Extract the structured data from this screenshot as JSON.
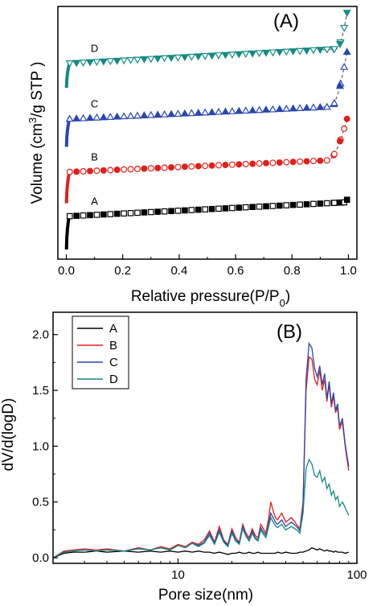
{
  "chart_data": [
    {
      "type": "scatter",
      "panel_label": "(A)",
      "xlabel": "Relative pressure(P/P",
      "xlabel_sub": "0",
      "xlabel_end": ")",
      "ylabel": "Volume (cm",
      "ylabel_sup": "3",
      "ylabel_end": "/g STP )",
      "xlim": [
        -0.03,
        1.03
      ],
      "x_ticks": [
        0.0,
        0.2,
        0.4,
        0.6,
        0.8,
        1.0
      ],
      "x_tick_labels": [
        "0.0",
        "0.2",
        "0.4",
        "0.6",
        "0.8",
        "1.0"
      ],
      "y_ticks_shown": false,
      "ylim": [
        0,
        100
      ],
      "series": [
        {
          "name": "A",
          "color": "#000000",
          "marker": "square",
          "base": 17,
          "knee": 5.0,
          "plateau": 17.0,
          "slope": 5.6,
          "tail_start": 0.99,
          "tail_top": 23.5
        },
        {
          "name": "B",
          "color": "#e0201b",
          "marker": "circle",
          "base": 34,
          "knee": 4.5,
          "plateau": 34.5,
          "slope": 5.0,
          "tail_start": 0.93,
          "tail_top": 55.5
        },
        {
          "name": "C",
          "color": "#2946b0",
          "marker": "triangle-up",
          "base": 55,
          "knee": 4.0,
          "plateau": 55.5,
          "slope": 5.2,
          "tail_start": 0.94,
          "tail_top": 82.0
        },
        {
          "name": "D",
          "color": "#138a83",
          "marker": "triangle-down",
          "base": 77,
          "knee": 3.5,
          "plateau": 77.5,
          "slope": 6.0,
          "tail_start": 0.96,
          "tail_top": 97.5
        }
      ]
    },
    {
      "type": "line",
      "panel_label": "(B)",
      "xlabel": "Pore size(nm)",
      "ylabel": "dV/d(logD)",
      "xscale": "log",
      "xlim": [
        2,
        100
      ],
      "ylim": [
        -0.05,
        2.2
      ],
      "x_ticks": [
        10,
        100
      ],
      "x_tick_labels": [
        "10",
        "100"
      ],
      "y_ticks": [
        0.0,
        0.5,
        1.0,
        1.5,
        2.0
      ],
      "y_tick_labels": [
        "0.0",
        "0.5",
        "1.0",
        "1.5",
        "2.0"
      ],
      "legend_position": "top-left",
      "x": [
        2.0,
        2.3,
        2.6,
        3.0,
        3.5,
        4.0,
        5.0,
        6.0,
        7.0,
        8.0,
        9.0,
        10.0,
        11.0,
        12.0,
        13.0,
        14.0,
        15.0,
        16.0,
        17.0,
        18.0,
        19.0,
        20.0,
        21.0,
        22.0,
        23.0,
        24.0,
        25.0,
        26.0,
        27.0,
        28.0,
        29.0,
        30.0,
        31.0,
        32.0,
        33.0,
        34.0,
        35.0,
        36.0,
        38.0,
        40.0,
        43.0,
        46.0,
        48.0,
        50.0,
        52.0,
        54.0,
        56.0,
        58.0,
        60.0,
        62.0,
        64.0,
        66.0,
        68.0,
        70.0,
        72.0,
        74.0,
        76.0,
        78.0,
        80.0,
        83.0,
        86.0,
        90.0
      ],
      "series": [
        {
          "name": "A",
          "color": "#000000",
          "values": [
            0.0,
            0.04,
            0.05,
            0.05,
            0.06,
            0.05,
            0.06,
            0.05,
            0.06,
            0.05,
            0.06,
            0.05,
            0.06,
            0.05,
            0.06,
            0.05,
            0.05,
            0.04,
            0.05,
            0.04,
            0.03,
            0.04,
            0.04,
            0.05,
            0.04,
            0.04,
            0.05,
            0.04,
            0.04,
            0.05,
            0.04,
            0.04,
            0.04,
            0.04,
            0.04,
            0.04,
            0.04,
            0.05,
            0.04,
            0.05,
            0.04,
            0.04,
            0.05,
            0.05,
            0.06,
            0.07,
            0.09,
            0.08,
            0.07,
            0.08,
            0.07,
            0.06,
            0.07,
            0.06,
            0.06,
            0.05,
            0.06,
            0.05,
            0.05,
            0.05,
            0.04,
            0.05
          ]
        },
        {
          "name": "B",
          "color": "#e0201b",
          "values": [
            0.0,
            0.06,
            0.07,
            0.08,
            0.07,
            0.08,
            0.06,
            0.09,
            0.07,
            0.1,
            0.08,
            0.12,
            0.1,
            0.14,
            0.12,
            0.16,
            0.24,
            0.14,
            0.28,
            0.16,
            0.12,
            0.26,
            0.18,
            0.14,
            0.3,
            0.22,
            0.18,
            0.26,
            0.2,
            0.18,
            0.3,
            0.26,
            0.22,
            0.34,
            0.5,
            0.42,
            0.36,
            0.34,
            0.4,
            0.32,
            0.36,
            0.3,
            0.26,
            0.5,
            1.5,
            1.8,
            1.78,
            1.6,
            1.55,
            1.68,
            1.5,
            1.6,
            1.4,
            1.55,
            1.35,
            1.45,
            1.3,
            1.35,
            1.15,
            1.22,
            1.0,
            0.78
          ]
        },
        {
          "name": "C",
          "color": "#2946b0",
          "values": [
            0.0,
            0.05,
            0.06,
            0.07,
            0.06,
            0.07,
            0.06,
            0.08,
            0.07,
            0.09,
            0.07,
            0.11,
            0.09,
            0.13,
            0.11,
            0.14,
            0.22,
            0.13,
            0.25,
            0.15,
            0.11,
            0.24,
            0.16,
            0.13,
            0.28,
            0.2,
            0.16,
            0.24,
            0.18,
            0.16,
            0.27,
            0.23,
            0.2,
            0.3,
            0.4,
            0.36,
            0.32,
            0.3,
            0.34,
            0.28,
            0.32,
            0.28,
            0.24,
            0.45,
            1.6,
            1.92,
            1.88,
            1.7,
            1.62,
            1.72,
            1.55,
            1.65,
            1.42,
            1.58,
            1.38,
            1.48,
            1.32,
            1.38,
            1.18,
            1.25,
            1.02,
            0.82
          ]
        },
        {
          "name": "D",
          "color": "#138a83",
          "values": [
            0.0,
            0.05,
            0.06,
            0.07,
            0.06,
            0.07,
            0.06,
            0.08,
            0.07,
            0.09,
            0.07,
            0.11,
            0.09,
            0.13,
            0.1,
            0.13,
            0.2,
            0.12,
            0.23,
            0.14,
            0.1,
            0.22,
            0.15,
            0.12,
            0.26,
            0.19,
            0.15,
            0.22,
            0.17,
            0.15,
            0.25,
            0.21,
            0.18,
            0.27,
            0.36,
            0.32,
            0.29,
            0.27,
            0.3,
            0.25,
            0.28,
            0.25,
            0.22,
            0.4,
            0.8,
            0.88,
            0.84,
            0.74,
            0.72,
            0.78,
            0.68,
            0.72,
            0.62,
            0.66,
            0.56,
            0.6,
            0.52,
            0.55,
            0.46,
            0.5,
            0.45,
            0.38
          ]
        }
      ]
    }
  ]
}
